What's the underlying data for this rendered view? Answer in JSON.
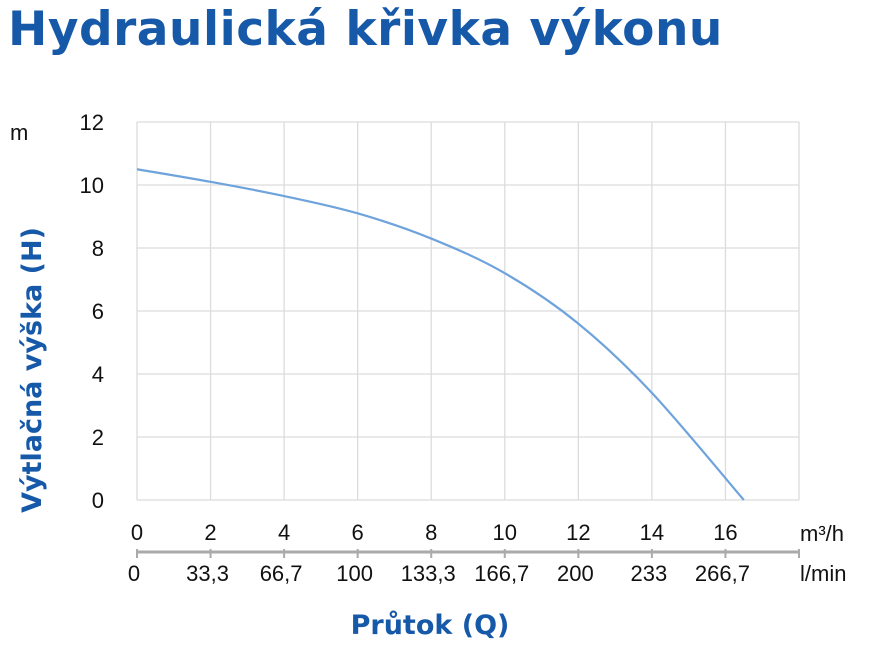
{
  "title": "Hydraulická křivka výkonu",
  "chart_data": {
    "type": "line",
    "title": "Hydraulická křivka výkonu",
    "ylabel": "Výtlačná výška (H)",
    "yunit": "m",
    "xlabel": "Průtok (Q)",
    "xunit": "m³/h",
    "x2unit": "l/min",
    "xlim": [
      0,
      18
    ],
    "ylim": [
      0,
      12
    ],
    "grid": true,
    "xticks": [
      "0",
      "2",
      "4",
      "6",
      "8",
      "10",
      "12",
      "14",
      "16"
    ],
    "x2ticks": [
      "0",
      "33,3",
      "66,7",
      "100",
      "133,3",
      "166,7",
      "200",
      "233",
      "266,7"
    ],
    "yticks": [
      "0",
      "2",
      "4",
      "6",
      "8",
      "10",
      "12"
    ],
    "series": [
      {
        "x": [
          0,
          2,
          4,
          6,
          8,
          10,
          12,
          14,
          16.5
        ],
        "y": [
          10.5,
          10.1,
          9.65,
          9.1,
          8.3,
          7.2,
          5.6,
          3.4,
          0
        ]
      }
    ],
    "line_color": "#6fa3dc",
    "accent_color": "#1659a8"
  }
}
